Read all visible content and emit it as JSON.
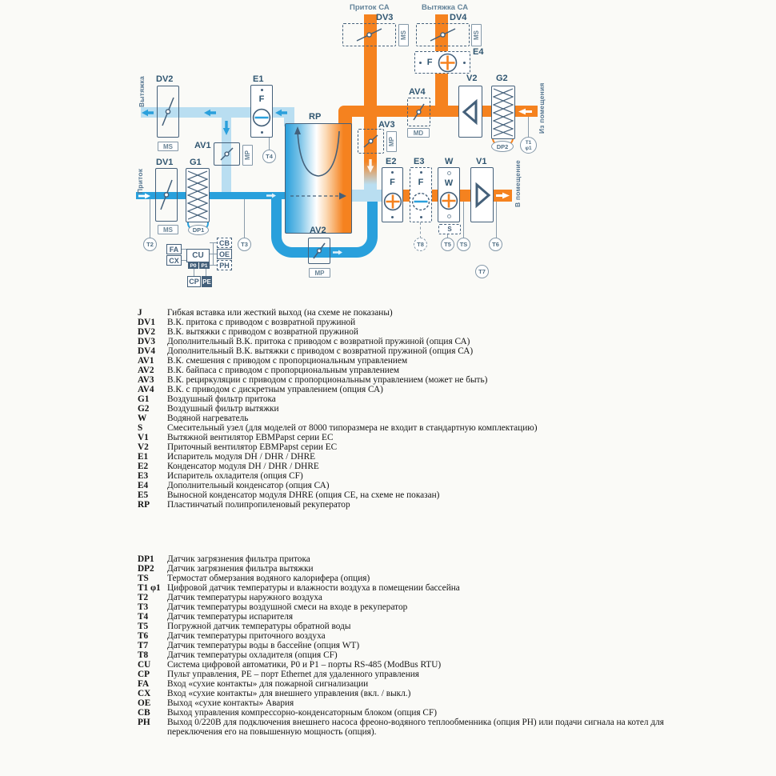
{
  "colors": {
    "orange": "#f5821f",
    "blue": "#29a0dc",
    "light_blue": "#b9def1",
    "outline": "#44607a",
    "label": "#2f5570"
  },
  "diagram": {
    "top_labels": {
      "pritok_ca": "Приток СА",
      "vytyazhka_ca": "Вытяжка СА"
    },
    "flow_labels": {
      "vytyazhka": "Вытяжка",
      "pritok": "Приток",
      "iz_pomeshcheniya": "Из помещения",
      "v_pomeshchenie": "В помещение"
    },
    "components": {
      "DV1": "DV1",
      "DV2": "DV2",
      "DV3": "DV3",
      "DV4": "DV4",
      "AV1": "AV1",
      "AV2": "AV2",
      "AV3": "AV3",
      "AV4": "AV4",
      "G1": "G1",
      "G2": "G2",
      "E1": "E1",
      "E2": "E2",
      "E3": "E3",
      "E4": "E4",
      "W": "W",
      "V1": "V1",
      "V2": "V2",
      "RP": "RP",
      "S": "S",
      "F": "F"
    },
    "tags": {
      "ms": "MS",
      "mp": "MP",
      "md": "MD"
    },
    "sensors": {
      "T1": "T1",
      "phi1": "φ1",
      "T2": "T2",
      "T3": "T3",
      "T4": "T4",
      "T5": "T5",
      "T6": "T6",
      "T7": "T7",
      "T8": "T8",
      "TS": "TS",
      "DP1": "DP1",
      "DP2": "DP2"
    },
    "control": {
      "FA": "FA",
      "CX": "CX",
      "CU": "CU",
      "P0": "P0",
      "P1": "P1",
      "CB": "CB",
      "OE": "OE",
      "PH": "PH",
      "CP": "CP",
      "PE": "PE"
    }
  },
  "legend": {
    "sections": [
      {
        "rows": [
          {
            "k": "J",
            "d": "Гибкая вставка или жесткий выход (на схеме не показаны)"
          },
          {
            "k": "DV1",
            "d": "В.К. притока с приводом с возвратной пружиной"
          },
          {
            "k": "DV2",
            "d": "В.К. вытяжки с приводом с возвратной пружиной"
          },
          {
            "k": "DV3",
            "d": "Дополнительный В.К. притока с приводом с возвратной пружиной (опция СА)"
          },
          {
            "k": "DV4",
            "d": "Дополнительный В.К. вытяжки с приводом с возвратной пружиной (опция СА)"
          },
          {
            "k": "AV1",
            "d": "В.К. смешения с приводом с пропорциональным управлением"
          },
          {
            "k": "AV2",
            "d": "В.К. байпаса с приводом с пропорциональным управлением"
          },
          {
            "k": "AV3",
            "d": "В.К. рециркуляции с приводом с пропорциональным управлением (может не быть)"
          },
          {
            "k": "AV4",
            "d": "В.К. с приводом с дискретным управлением (опция СА)"
          },
          {
            "k": "G1",
            "d": "Воздушный фильтр притока"
          },
          {
            "k": "G2",
            "d": "Воздушный фильтр вытяжки"
          },
          {
            "k": "W",
            "d": "Водяной нагреватель"
          },
          {
            "k": "S",
            "d": "Смесительный узел (для моделей от 8000 типоразмера не входит в стандартную комплектацию)"
          },
          {
            "k": "V1",
            "d": "Вытяжной вентилятор EBMPapst серии EC"
          },
          {
            "k": "V2",
            "d": "Приточный вентилятор EBMPapst серии EC"
          },
          {
            "k": "E1",
            "d": "Испаритель модуля DH / DHR / DHRE"
          },
          {
            "k": "E2",
            "d": "Конденсатор модуля DH / DHR / DHRE"
          },
          {
            "k": "E3",
            "d": "Испаритель охладителя (опция CF)"
          },
          {
            "k": "E4",
            "d": "Дополнительный конденсатор (опция СА)"
          },
          {
            "k": "E5",
            "d": "Выносной конденсатор модуля DHRE (опция СЕ, на схеме не показан)"
          },
          {
            "k": "RP",
            "d": "Пластинчатый полипропиленовый рекуператор"
          }
        ]
      },
      {
        "rows": [
          {
            "k": "DP1",
            "d": "Датчик загрязнения фильтра притока"
          },
          {
            "k": "DP2",
            "d": "Датчик загрязнения фильтра вытяжки"
          },
          {
            "k": "TS",
            "d": "Термостат обмерзания водяного калорифера (опция)"
          },
          {
            "k": "T1 φ1",
            "d": "Цифровой датчик температуры и влажности воздуха в помещении бассейна"
          },
          {
            "k": "T2",
            "d": "Датчик температуры наружного воздуха"
          },
          {
            "k": "T3",
            "d": "Датчик температуры воздушной смеси на входе в рекуператор"
          },
          {
            "k": "T4",
            "d": "Датчик температуры испарителя"
          },
          {
            "k": "T5",
            "d": "Погружной датчик температуры обратной воды"
          },
          {
            "k": "T6",
            "d": "Датчик температуры приточного воздуха"
          },
          {
            "k": "T7",
            "d": "Датчик температуры воды в бассейне (опция WT)"
          },
          {
            "k": "T8",
            "d": "Датчик температуры охладителя (опция CF)"
          },
          {
            "k": "CU",
            "d": "Система цифровой автоматики, P0 и P1 – порты RS-485 (ModBus RTU)"
          },
          {
            "k": "CP",
            "d": "Пульт управления, PE – порт Ethernet для удаленного управления"
          },
          {
            "k": "FA",
            "d": "Вход «сухие контакты» для пожарной сигнализации"
          },
          {
            "k": "CX",
            "d": "Вход  «сухие контакты» для внешнего управления (вкл. / выкл.)"
          },
          {
            "k": "OE",
            "d": "Выход «сухие контакты» Авария"
          },
          {
            "k": "CB",
            "d": "Выход управления компрессорно-конденсаторным блоком (опция CF)"
          },
          {
            "k": "PH",
            "d": "Выход 0/220В для подключения внешнего насоса фреоно-водяного теплообменника (опция PH) или подачи сигнала на котел для переключения его на повышенную мощность (опция)."
          }
        ]
      }
    ]
  }
}
